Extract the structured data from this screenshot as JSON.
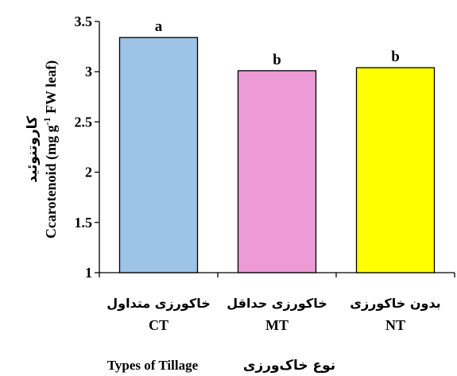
{
  "chart_data": {
    "type": "bar",
    "categories": [
      {
        "label_fa": "خاکورزی متداول",
        "label_en": "CT",
        "letter": "a",
        "value": 3.34,
        "color": "#9DC3E6"
      },
      {
        "label_fa": "خاکورزی حداقل",
        "label_en": "MT",
        "letter": "b",
        "value": 3.01,
        "color": "#EE9AD7"
      },
      {
        "label_fa": "بدون خاکورزی",
        "label_en": "NT",
        "letter": "b",
        "value": 3.04,
        "color": "#FFFF00"
      }
    ],
    "ylim": [
      1,
      3.5
    ],
    "yticks": [
      "1",
      "1.5",
      "2",
      "2.5",
      "3",
      "3.5"
    ],
    "ylabel_fa": "کاروتنوئید",
    "ylabel_en_main": "Ccarotenoid (mg g",
    "ylabel_en_sup": "-1",
    "ylabel_en_tail": " FW leaf)",
    "xlabel_en": "Types of Tillage",
    "xlabel_fa": "نوع خاک‌ورزی",
    "grid": false,
    "legend": "none"
  }
}
